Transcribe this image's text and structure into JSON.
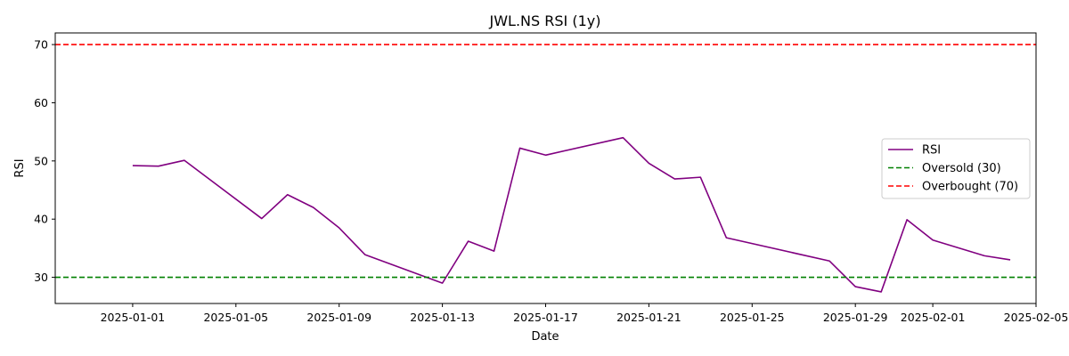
{
  "chart_data": {
    "type": "line",
    "title": "JWL.NS RSI (1y)",
    "xlabel": "Date",
    "ylabel": "RSI",
    "xlim": [
      "2024-12-29",
      "2025-02-05"
    ],
    "ylim": [
      25.5,
      72
    ],
    "x_ticks": [
      "2025-01-01",
      "2025-01-05",
      "2025-01-09",
      "2025-01-13",
      "2025-01-17",
      "2025-01-21",
      "2025-01-25",
      "2025-01-29",
      "2025-02-01",
      "2025-02-05"
    ],
    "y_ticks": [
      30,
      40,
      50,
      60,
      70
    ],
    "grid": false,
    "legend": "center-right",
    "series": [
      {
        "name": "RSI",
        "color": "#800080",
        "style": "solid",
        "points": [
          {
            "x": "2025-01-01",
            "y": 49.2
          },
          {
            "x": "2025-01-02",
            "y": 49.1
          },
          {
            "x": "2025-01-03",
            "y": 50.1
          },
          {
            "x": "2025-01-06",
            "y": 40.1
          },
          {
            "x": "2025-01-07",
            "y": 44.2
          },
          {
            "x": "2025-01-08",
            "y": 42.0
          },
          {
            "x": "2025-01-09",
            "y": 38.5
          },
          {
            "x": "2025-01-10",
            "y": 33.9
          },
          {
            "x": "2025-01-13",
            "y": 29.0
          },
          {
            "x": "2025-01-14",
            "y": 36.2
          },
          {
            "x": "2025-01-15",
            "y": 34.5
          },
          {
            "x": "2025-01-16",
            "y": 52.2
          },
          {
            "x": "2025-01-17",
            "y": 51.0
          },
          {
            "x": "2025-01-20",
            "y": 54.0
          },
          {
            "x": "2025-01-21",
            "y": 49.6
          },
          {
            "x": "2025-01-22",
            "y": 46.9
          },
          {
            "x": "2025-01-23",
            "y": 47.2
          },
          {
            "x": "2025-01-24",
            "y": 36.8
          },
          {
            "x": "2025-01-28",
            "y": 32.8
          },
          {
            "x": "2025-01-29",
            "y": 28.4
          },
          {
            "x": "2025-01-30",
            "y": 27.5
          },
          {
            "x": "2025-01-31",
            "y": 39.9
          },
          {
            "x": "2025-02-01",
            "y": 36.4
          },
          {
            "x": "2025-02-03",
            "y": 33.7
          },
          {
            "x": "2025-02-04",
            "y": 33.0
          }
        ]
      },
      {
        "name": "Oversold (30)",
        "color": "#008000",
        "style": "dashed",
        "hline": 30
      },
      {
        "name": "Overbought (70)",
        "color": "#ff0000",
        "style": "dashed",
        "hline": 70
      }
    ]
  }
}
